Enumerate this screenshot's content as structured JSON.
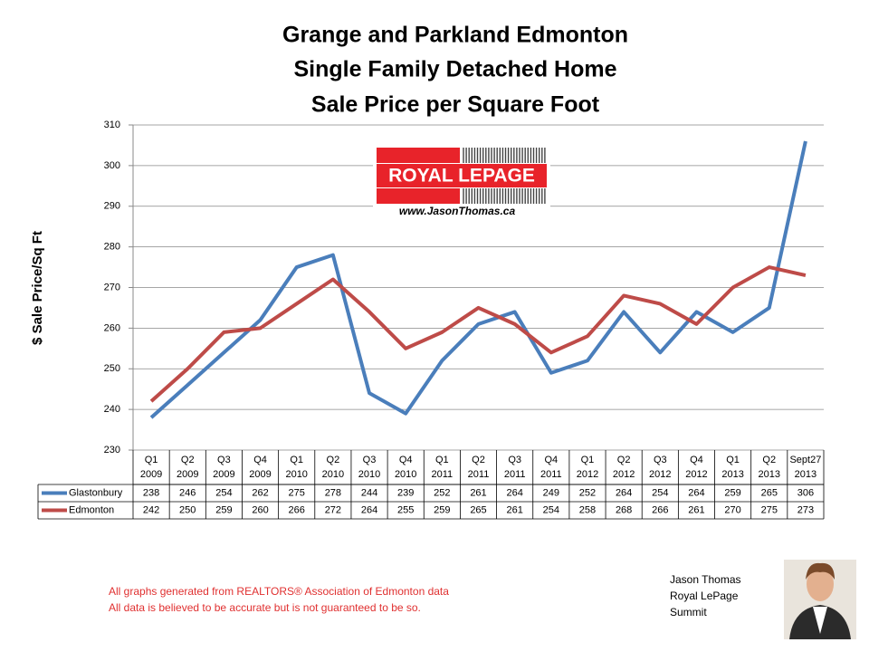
{
  "chart_data": {
    "type": "line",
    "title": [
      "Grange and Parkland Edmonton",
      "Single Family Detached Home",
      "Sale Price per Square Foot"
    ],
    "y_label": "$ Sale Price/Sq Ft",
    "categories": [
      [
        "Q1",
        "2009"
      ],
      [
        "Q2",
        "2009"
      ],
      [
        "Q3",
        "2009"
      ],
      [
        "Q4",
        "2009"
      ],
      [
        "Q1",
        "2010"
      ],
      [
        "Q2",
        "2010"
      ],
      [
        "Q3",
        "2010"
      ],
      [
        "Q4",
        "2010"
      ],
      [
        "Q1",
        "2011"
      ],
      [
        "Q2",
        "2011"
      ],
      [
        "Q3",
        "2011"
      ],
      [
        "Q4",
        "2011"
      ],
      [
        "Q1",
        "2012"
      ],
      [
        "Q2",
        "2012"
      ],
      [
        "Q3",
        "2012"
      ],
      [
        "Q4",
        "2012"
      ],
      [
        "Q1",
        "2013"
      ],
      [
        "Q2",
        "2013"
      ],
      [
        "Sept27",
        "2013"
      ]
    ],
    "series": [
      {
        "name": "Glastonbury",
        "color": "#4a7ebb",
        "values": [
          238,
          246,
          254,
          262,
          275,
          278,
          244,
          239,
          252,
          261,
          264,
          249,
          252,
          264,
          254,
          264,
          259,
          265,
          306
        ]
      },
      {
        "name": "Edmonton",
        "color": "#be4b48",
        "values": [
          242,
          250,
          259,
          260,
          266,
          272,
          264,
          255,
          259,
          265,
          261,
          254,
          258,
          268,
          266,
          261,
          270,
          275,
          273
        ]
      }
    ],
    "ylim": [
      230,
      310
    ],
    "yticks": [
      230,
      240,
      250,
      260,
      270,
      280,
      290,
      300,
      310
    ],
    "grid": true
  },
  "logo": {
    "brand": "ROYAL LEPAGE",
    "url": "www.JasonThomas.ca"
  },
  "notes": [
    "All graphs generated from REALTORS® Association of Edmonton data",
    "All data is believed to be accurate but is not guaranteed to be so."
  ],
  "signature": [
    "Jason Thomas",
    "Royal LePage",
    "Summit"
  ]
}
